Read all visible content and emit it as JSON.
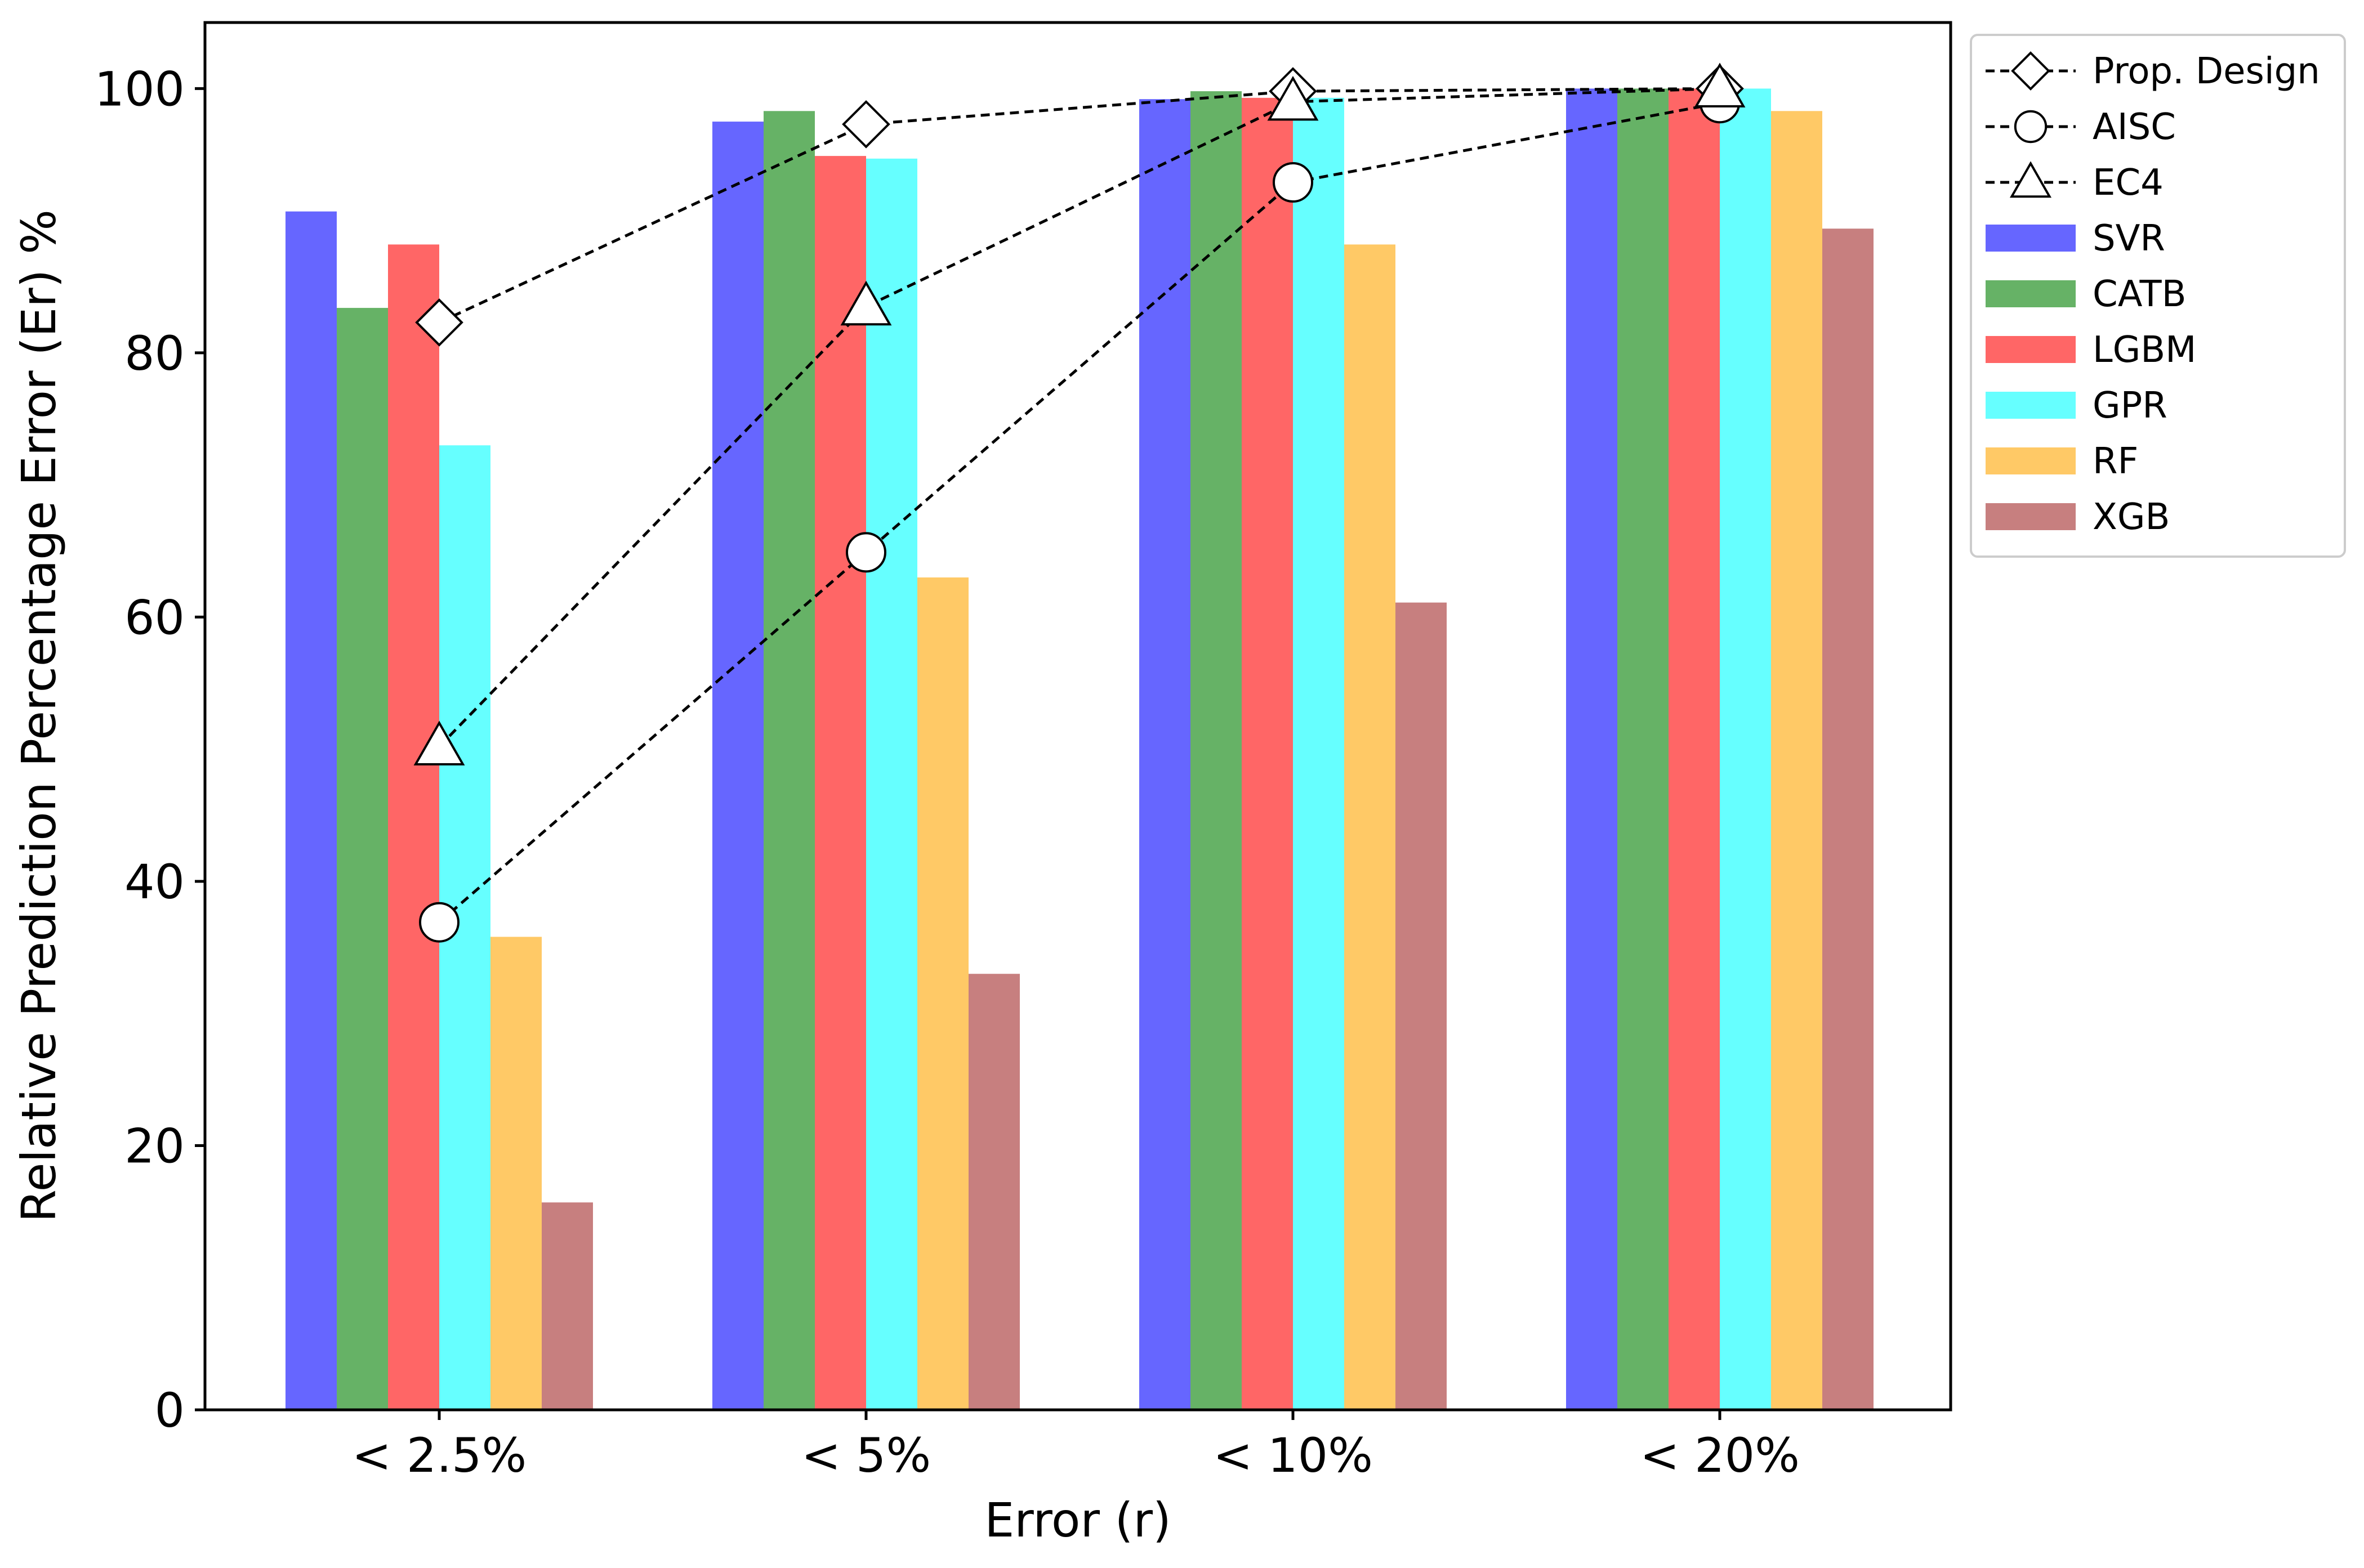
{
  "chart_data": {
    "type": "bar",
    "title": "",
    "xlabel": "Error (r)",
    "ylabel": "Relative Prediction Percentage Error (Er) %",
    "categories": [
      "< 2.5%",
      "< 5%",
      "< 10%",
      "< 20%"
    ],
    "ylim": [
      0,
      105
    ],
    "yticks": [
      0,
      20,
      40,
      60,
      80,
      100
    ],
    "grid": false,
    "legend_position": "outside-right-top",
    "bar_series": [
      {
        "name": "SVR",
        "color": "#6666ff",
        "values": [
          90.7,
          97.5,
          99.2,
          100
        ]
      },
      {
        "name": "CATB",
        "color": "#66b266",
        "values": [
          83.4,
          98.3,
          99.8,
          100
        ]
      },
      {
        "name": "LGBM",
        "color": "#ff6666",
        "values": [
          88.2,
          94.9,
          99.3,
          100
        ]
      },
      {
        "name": "GPR",
        "color": "#66ffff",
        "values": [
          73.0,
          94.7,
          99.3,
          100
        ]
      },
      {
        "name": "RF",
        "color": "#ffc966",
        "values": [
          35.8,
          63.0,
          88.2,
          98.3
        ]
      },
      {
        "name": "XGB",
        "color": "#c77f7f",
        "values": [
          15.7,
          33.0,
          61.1,
          89.4
        ]
      }
    ],
    "line_series": [
      {
        "name": "Prop. Design",
        "marker": "diamond",
        "color": "#000000",
        "values": [
          82.3,
          97.3,
          99.8,
          100
        ]
      },
      {
        "name": "AISC",
        "marker": "circle",
        "color": "#000000",
        "values": [
          36.9,
          64.9,
          92.9,
          98.9
        ]
      },
      {
        "name": "EC4",
        "marker": "triangle",
        "color": "#000000",
        "values": [
          50.2,
          83.5,
          99.0,
          100
        ]
      }
    ]
  }
}
